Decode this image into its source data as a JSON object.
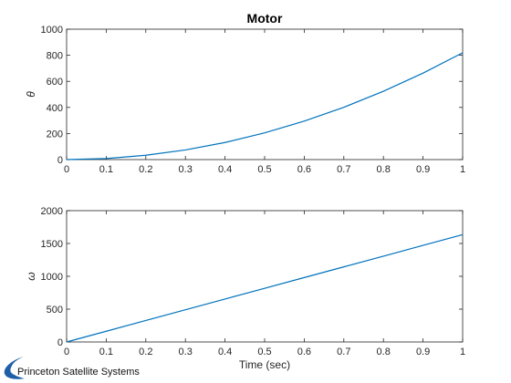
{
  "chart_data": [
    {
      "type": "line",
      "title": "Motor",
      "xlabel": "",
      "ylabel": "θ",
      "xlim": [
        0,
        1
      ],
      "ylim": [
        0,
        1000
      ],
      "xticks": [
        0,
        0.1,
        0.2,
        0.3,
        0.4,
        0.5,
        0.6,
        0.7,
        0.8,
        0.9,
        1
      ],
      "xtick_labels": [
        "0",
        "0.1",
        "0.2",
        "0.3",
        "0.4",
        "0.5",
        "0.6",
        "0.7",
        "0.8",
        "0.9",
        "1"
      ],
      "yticks": [
        0,
        200,
        400,
        600,
        800,
        1000
      ],
      "ytick_labels": [
        "0",
        "200",
        "400",
        "600",
        "800",
        "1000"
      ],
      "grid": true,
      "series": [
        {
          "color": "#0072bd",
          "x": [
            0,
            0.1,
            0.2,
            0.3,
            0.4,
            0.5,
            0.6,
            0.7,
            0.8,
            0.9,
            1.0
          ],
          "y": [
            0,
            8,
            33,
            74,
            131,
            205,
            295,
            401,
            524,
            663,
            819
          ]
        }
      ]
    },
    {
      "type": "line",
      "title": "",
      "xlabel": "Time (sec)",
      "ylabel": "ω",
      "xlim": [
        0,
        1
      ],
      "ylim": [
        0,
        2000
      ],
      "xticks": [
        0,
        0.1,
        0.2,
        0.3,
        0.4,
        0.5,
        0.6,
        0.7,
        0.8,
        0.9,
        1
      ],
      "xtick_labels": [
        "0",
        "0.1",
        "0.2",
        "0.3",
        "0.4",
        "0.5",
        "0.6",
        "0.7",
        "0.8",
        "0.9",
        "1"
      ],
      "yticks": [
        0,
        500,
        1000,
        1500,
        2000
      ],
      "ytick_labels": [
        "0",
        "500",
        "1000",
        "1500",
        "2000"
      ],
      "grid": true,
      "series": [
        {
          "color": "#0072bd",
          "x": [
            0,
            0.1,
            0.2,
            0.3,
            0.4,
            0.5,
            0.6,
            0.7,
            0.8,
            0.9,
            1.0
          ],
          "y": [
            0,
            163,
            327,
            490,
            654,
            817,
            981,
            1144,
            1307,
            1471,
            1634
          ]
        }
      ]
    }
  ],
  "logo": {
    "text": "Princeton Satellite Systems",
    "color": "#1f5fa8"
  }
}
